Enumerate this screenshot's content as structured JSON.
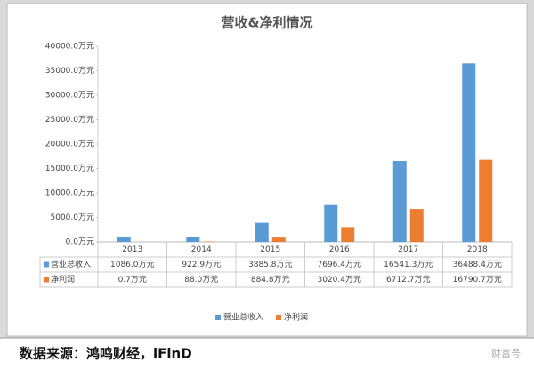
{
  "chart_data": {
    "type": "bar",
    "title": "营收&净利情况",
    "categories": [
      "2013",
      "2014",
      "2015",
      "2016",
      "2017",
      "2018"
    ],
    "series": [
      {
        "name": "营业总收入",
        "color": "#5b9bd5",
        "values": [
          1086.0,
          922.9,
          3885.8,
          7696.4,
          16541.3,
          36488.4
        ],
        "value_labels": [
          "1086.0万元",
          "922.9万元",
          "3885.8万元",
          "7696.4万元",
          "16541.3万元",
          "36488.4万元"
        ]
      },
      {
        "name": "净利润",
        "color": "#ed7d31",
        "values": [
          0.7,
          88.0,
          884.8,
          3020.4,
          6712.7,
          16790.7
        ],
        "value_labels": [
          "0.7万元",
          "88.0万元",
          "884.8万元",
          "3020.4万元",
          "6712.7万元",
          "16790.7万元"
        ]
      }
    ],
    "ylim": [
      0,
      40000
    ],
    "yticks": [
      {
        "value": 0,
        "label": "0.0万元"
      },
      {
        "value": 5000,
        "label": "5000.0万元"
      },
      {
        "value": 10000,
        "label": "10000.0万元"
      },
      {
        "value": 15000,
        "label": "15000.0万元"
      },
      {
        "value": 20000,
        "label": "20000.0万元"
      },
      {
        "value": 25000,
        "label": "25000.0万元"
      },
      {
        "value": 30000,
        "label": "30000.0万元"
      },
      {
        "value": 35000,
        "label": "35000.0万元"
      },
      {
        "value": 40000,
        "label": "40000.0万元"
      }
    ],
    "grid": false,
    "legend": "bottom"
  },
  "footer": {
    "source": "数据来源：鸿鸣财经，iFinD",
    "watermark": "财富号"
  }
}
